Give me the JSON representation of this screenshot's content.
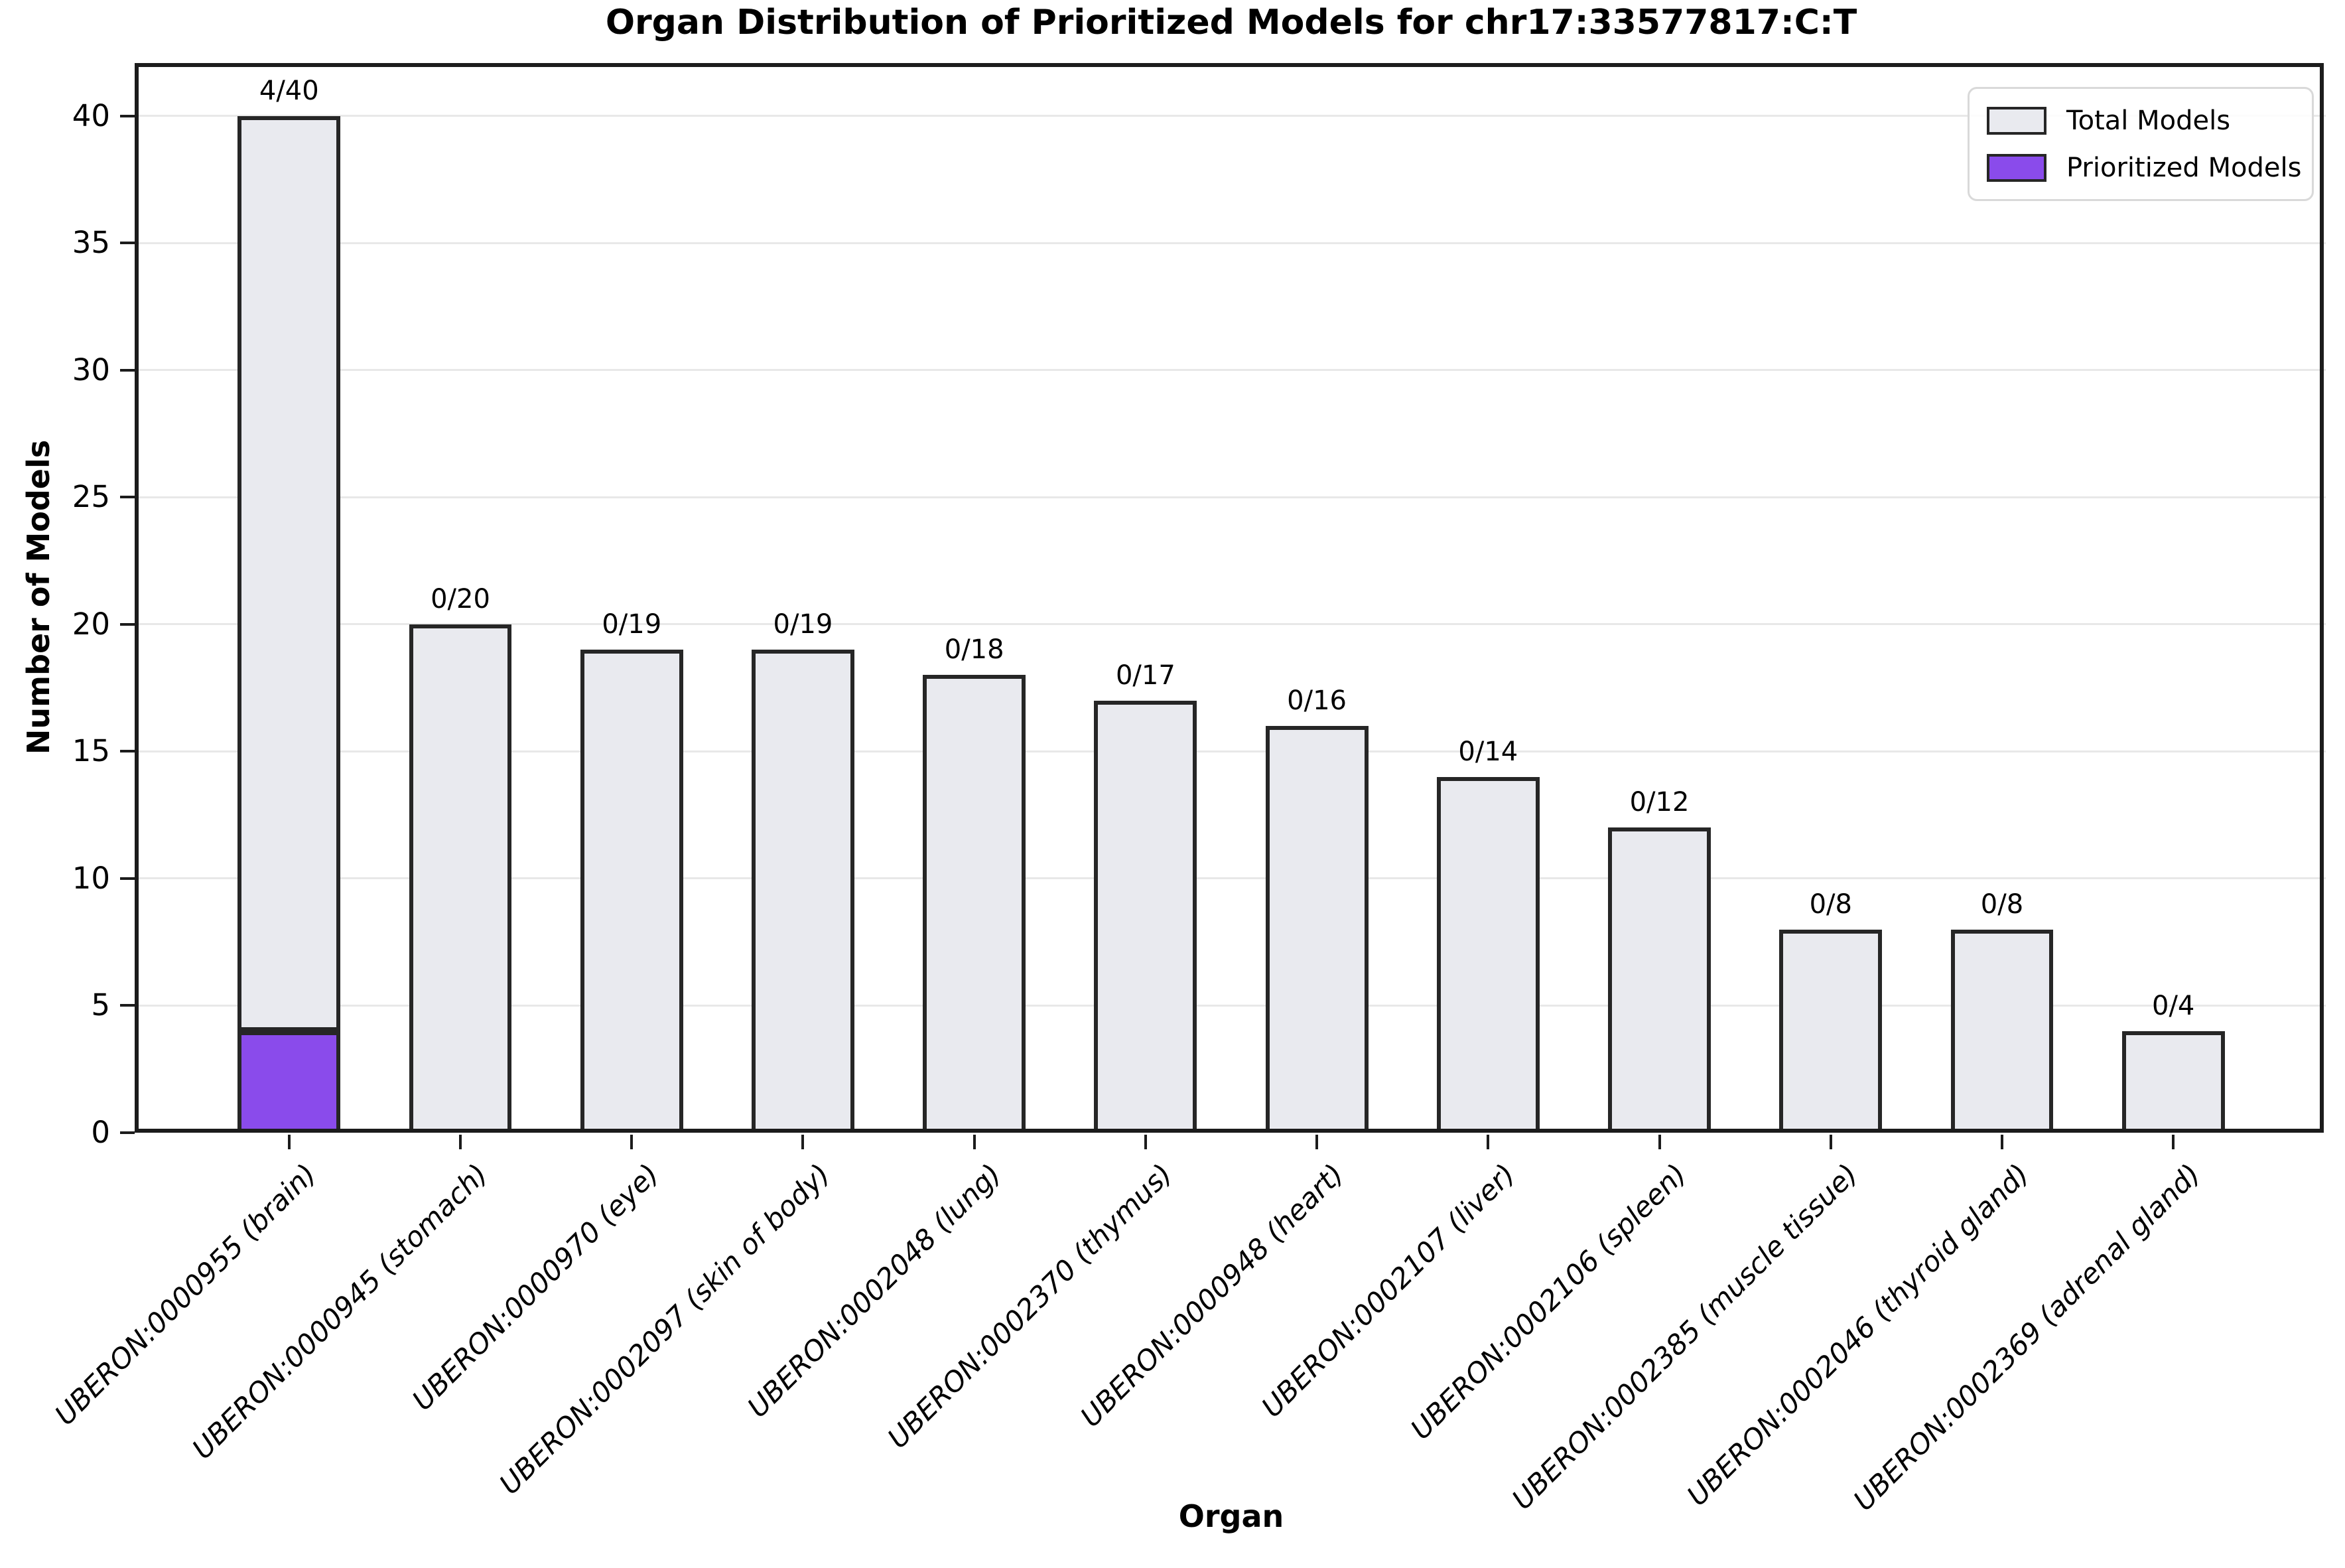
{
  "title": "Organ Distribution of Prioritized Models for chr17:33577817:C:T",
  "chart_data": {
    "type": "bar",
    "stacked": true,
    "title": "Organ Distribution of Prioritized Models for chr17:33577817:C:T",
    "xlabel": "Organ",
    "ylabel": "Number of Models",
    "categories": [
      "UBERON:0000955 (brain)",
      "UBERON:0000945 (stomach)",
      "UBERON:0000970 (eye)",
      "UBERON:0002097 (skin of body)",
      "UBERON:0002048 (lung)",
      "UBERON:0002370 (thymus)",
      "UBERON:0000948 (heart)",
      "UBERON:0002107 (liver)",
      "UBERON:0002106 (spleen)",
      "UBERON:0002385 (muscle tissue)",
      "UBERON:0002046 (thyroid gland)",
      "UBERON:0002369 (adrenal gland)"
    ],
    "series": [
      {
        "name": "Total Models",
        "color": "#E9EAEF",
        "values": [
          40,
          20,
          19,
          19,
          18,
          17,
          16,
          14,
          12,
          8,
          8,
          4
        ]
      },
      {
        "name": "Prioritized Models",
        "color": "#8A4BEB",
        "values": [
          4,
          0,
          0,
          0,
          0,
          0,
          0,
          0,
          0,
          0,
          0,
          0
        ]
      }
    ],
    "bar_labels": [
      "4/40",
      "0/20",
      "0/19",
      "0/19",
      "0/18",
      "0/17",
      "0/16",
      "0/14",
      "0/12",
      "0/8",
      "0/8",
      "0/4"
    ],
    "y_ticks": [
      0,
      5,
      10,
      15,
      20,
      25,
      30,
      35,
      40
    ],
    "ylim": [
      0,
      42
    ],
    "grid": "horizontal",
    "legend_position": "upper right",
    "edge_color": "#262626",
    "grid_color": "#e8e8e8"
  },
  "legend": {
    "items": [
      {
        "label": "Total Models",
        "color": "#E9EAEF"
      },
      {
        "label": "Prioritized Models",
        "color": "#8A4BEB"
      }
    ]
  }
}
